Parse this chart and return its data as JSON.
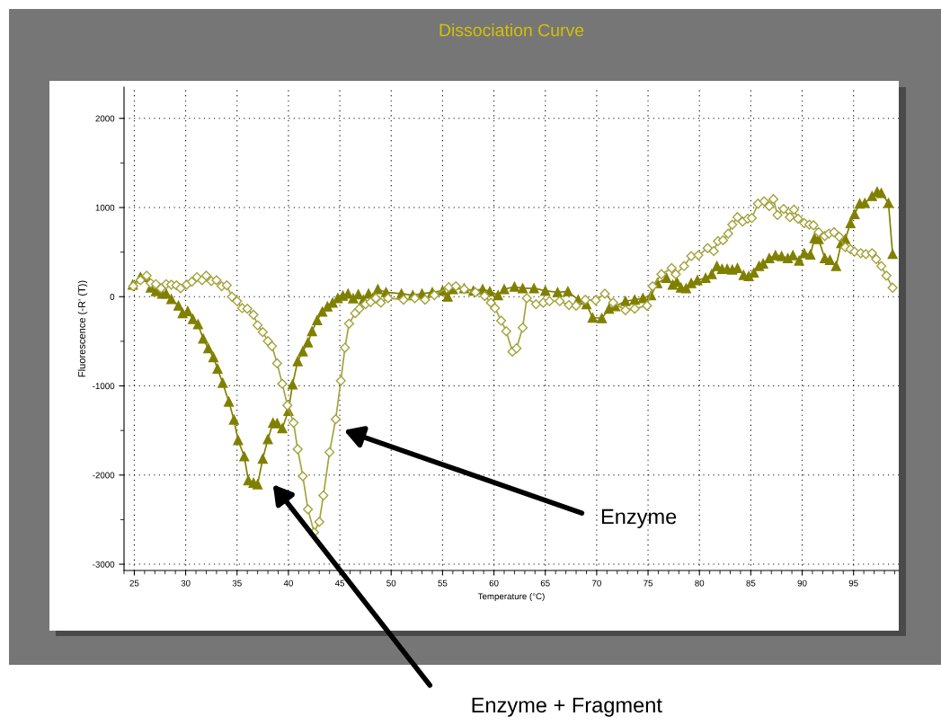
{
  "chart_data": {
    "type": "line",
    "title": "Dissociation Curve",
    "xlabel": "Temperature (°C)",
    "ylabel": "Fluorescence (-R' (T))",
    "xlim": [
      24,
      99.4
    ],
    "ylim": [
      -3070,
      2350
    ],
    "xticks": [
      {
        "value": 24,
        "label": null
      },
      25,
      {
        "value": 26,
        "label": null
      },
      {
        "value": 27,
        "label": null
      },
      {
        "value": 28,
        "label": null
      },
      {
        "value": 29,
        "label": null
      },
      30,
      {
        "value": 31,
        "label": null
      },
      {
        "value": 32,
        "label": null
      },
      {
        "value": 33,
        "label": null
      },
      {
        "value": 34,
        "label": null
      },
      35,
      {
        "value": 36,
        "label": null
      },
      {
        "value": 37,
        "label": null
      },
      {
        "value": 38,
        "label": null
      },
      {
        "value": 39,
        "label": null
      },
      40,
      {
        "value": 41,
        "label": null
      },
      {
        "value": 42,
        "label": null
      },
      {
        "value": 43,
        "label": null
      },
      {
        "value": 44,
        "label": null
      },
      45,
      {
        "value": 46,
        "label": null
      },
      {
        "value": 47,
        "label": null
      },
      {
        "value": 48,
        "label": null
      },
      {
        "value": 49,
        "label": null
      },
      50,
      {
        "value": 51,
        "label": null
      },
      {
        "value": 52,
        "label": null
      },
      {
        "value": 53,
        "label": null
      },
      {
        "value": 54,
        "label": null
      },
      55,
      {
        "value": 56,
        "label": null
      },
      {
        "value": 57,
        "label": null
      },
      {
        "value": 58,
        "label": null
      },
      {
        "value": 59,
        "label": null
      },
      60,
      {
        "value": 61,
        "label": null
      },
      {
        "value": 62,
        "label": null
      },
      {
        "value": 63,
        "label": null
      },
      {
        "value": 64,
        "label": null
      },
      65,
      {
        "value": 66,
        "label": null
      },
      {
        "value": 67,
        "label": null
      },
      {
        "value": 68,
        "label": null
      },
      {
        "value": 69,
        "label": null
      },
      70,
      {
        "value": 71,
        "label": null
      },
      {
        "value": 72,
        "label": null
      },
      {
        "value": 73,
        "label": null
      },
      {
        "value": 74,
        "label": null
      },
      75,
      {
        "value": 76,
        "label": null
      },
      {
        "value": 77,
        "label": null
      },
      {
        "value": 78,
        "label": null
      },
      {
        "value": 79,
        "label": null
      },
      80,
      {
        "value": 81,
        "label": null
      },
      {
        "value": 82,
        "label": null
      },
      {
        "value": 83,
        "label": null
      },
      {
        "value": 84,
        "label": null
      },
      85,
      {
        "value": 86,
        "label": null
      },
      {
        "value": 87,
        "label": null
      },
      {
        "value": 88,
        "label": null
      },
      {
        "value": 89,
        "label": null
      },
      90,
      {
        "value": 91,
        "label": null
      },
      {
        "value": 92,
        "label": null
      },
      {
        "value": 93,
        "label": null
      },
      {
        "value": 94,
        "label": null
      },
      95,
      {
        "value": 96,
        "label": null
      },
      {
        "value": 97,
        "label": null
      },
      {
        "value": 98,
        "label": null
      },
      {
        "value": 99,
        "label": null
      }
    ],
    "yticks": [
      -3000,
      {
        "value": -2500,
        "label": null
      },
      -2000,
      {
        "value": -1500,
        "label": null
      },
      -1000,
      {
        "value": -500,
        "label": null
      },
      0,
      {
        "value": 500,
        "label": null
      },
      1000,
      {
        "value": 1500,
        "label": null
      },
      2000
    ],
    "grid": true,
    "line_style": "solid",
    "series": [
      {
        "color": "#808000",
        "marker": "triangle",
        "x": [
          24.85,
          25.6,
          26.2,
          26.6,
          27.1,
          27.7,
          28.1,
          28.6,
          29.3,
          29.7,
          30.2,
          30.7,
          31.2,
          31.7,
          32.2,
          32.7,
          33.1,
          33.6,
          34.2,
          34.7,
          35.1,
          35.7,
          36.1,
          36.6,
          37.0,
          37.5,
          38.0,
          38.5,
          38.9,
          39.4,
          40.0,
          40.4,
          40.9,
          41.4,
          41.9,
          42.3,
          42.8,
          43.3,
          43.8,
          44.3,
          44.8,
          45.3,
          45.8,
          46.3,
          46.8,
          47.3,
          47.8,
          48.2,
          48.7,
          49.5,
          51.0,
          52.1,
          53.0,
          54.0,
          55.0,
          55.5,
          56.0,
          57.1,
          58.0,
          58.9,
          59.6,
          60.4,
          61.0,
          62.0,
          62.8,
          63.9,
          65.0,
          66.2,
          67.2,
          68.2,
          69.0,
          69.6,
          70.5,
          71.2,
          71.8,
          72.8,
          73.7,
          74.5,
          75.3,
          75.9,
          76.8,
          77.4,
          77.8,
          78.2,
          78.7,
          79.2,
          79.8,
          80.6,
          81.2,
          81.7,
          82.2,
          82.7,
          83.2,
          83.7,
          84.3,
          84.8,
          85.3,
          85.8,
          86.2,
          86.8,
          87.4,
          88.0,
          88.6,
          89.1,
          89.7,
          90.2,
          90.8,
          91.2,
          91.6,
          92.2,
          92.7,
          93.3,
          93.8,
          94.2,
          94.7,
          95.1,
          95.6,
          96.1,
          96.8,
          97.3,
          97.7,
          98.4,
          98.8
        ],
        "values": [
          134,
          219,
          219,
          101,
          61,
          34,
          34,
          -27,
          -101,
          -185,
          -162,
          -252,
          -310,
          -471,
          -579,
          -680,
          -808,
          -966,
          -1178,
          -1380,
          -1609,
          -1791,
          -2060,
          -2087,
          -2104,
          -1818,
          -1599,
          -1414,
          -1420,
          -1475,
          -1280,
          -983,
          -724,
          -613,
          -512,
          -387,
          -263,
          -168,
          -111,
          -67,
          -17,
          10,
          34,
          -20,
          27,
          -34,
          34,
          -17,
          84,
          50,
          34,
          17,
          34,
          50,
          67,
          0,
          84,
          94,
          67,
          84,
          60,
          17,
          84,
          111,
          94,
          94,
          67,
          50,
          60,
          -34,
          -84,
          -236,
          -242,
          -135,
          -108,
          -50,
          -34,
          -17,
          17,
          151,
          209,
          135,
          168,
          101,
          94,
          151,
          185,
          209,
          252,
          343,
          310,
          310,
          303,
          320,
          242,
          229,
          269,
          343,
          370,
          431,
          465,
          455,
          431,
          465,
          404,
          488,
          471,
          656,
          646,
          431,
          411,
          343,
          599,
          646,
          825,
          926,
          1043,
          1050,
          1128,
          1178,
          1162,
          1050,
          478
        ]
      },
      {
        "color": "#a3a23c",
        "marker": "diamond",
        "x": [
          24.9,
          25.6,
          26.2,
          26.6,
          27.1,
          27.6,
          28.1,
          28.6,
          29.1,
          29.5,
          30.1,
          30.6,
          31.1,
          31.6,
          32.0,
          32.5,
          33.0,
          33.5,
          34.0,
          34.5,
          35.0,
          35.5,
          36.0,
          36.6,
          37.0,
          37.5,
          38.0,
          38.4,
          38.9,
          39.4,
          39.9,
          40.5,
          40.9,
          41.4,
          41.9,
          42.5,
          43.0,
          43.4,
          44.0,
          44.6,
          45.1,
          45.5,
          45.9,
          46.5,
          46.9,
          47.5,
          48.0,
          48.5,
          49.0,
          49.7,
          51.2,
          52.3,
          53.3,
          54.2,
          55.6,
          56.3,
          57.1,
          58.2,
          59.1,
          59.7,
          60.1,
          60.7,
          61.2,
          61.8,
          62.2,
          62.8,
          63.2,
          64.1,
          64.8,
          65.4,
          66.4,
          67.3,
          68.0,
          68.9,
          69.9,
          70.8,
          71.6,
          72.8,
          73.7,
          74.9,
          75.45,
          76.3,
          77.3,
          77.7,
          78.5,
          79.2,
          79.9,
          80.8,
          81.4,
          81.8,
          82.3,
          82.8,
          83.2,
          83.7,
          84.2,
          84.7,
          85.1,
          85.7,
          86.3,
          86.8,
          87.2,
          87.6,
          88.2,
          88.8,
          89.2,
          89.6,
          90.2,
          90.7,
          91.1,
          91.6,
          92.2,
          92.6,
          93.1,
          93.6,
          94.2,
          94.7,
          95.1,
          95.7,
          96.2,
          96.8,
          97.2,
          97.7,
          98.2,
          98.8
        ],
        "values": [
          118,
          185,
          236,
          151,
          141,
          94,
          141,
          135,
          128,
          94,
          135,
          168,
          219,
          185,
          236,
          175,
          185,
          118,
          128,
          0,
          -50,
          -128,
          -135,
          -202,
          -320,
          -397,
          -498,
          -555,
          -747,
          -976,
          -1219,
          -1414,
          -1710,
          -2013,
          -2384,
          -2643,
          -2525,
          -2229,
          -1744,
          -1374,
          -943,
          -572,
          -303,
          -185,
          -135,
          -84,
          -61,
          -17,
          -67,
          -17,
          -34,
          -17,
          -34,
          17,
          107,
          118,
          84,
          50,
          7,
          -67,
          -128,
          -269,
          -387,
          -616,
          -579,
          -347,
          -17,
          -84,
          -67,
          -50,
          -50,
          -94,
          -101,
          -34,
          -40,
          34,
          -67,
          -151,
          -135,
          -101,
          118,
          252,
          320,
          252,
          343,
          455,
          465,
          545,
          512,
          623,
          633,
          707,
          808,
          892,
          842,
          875,
          882,
          1043,
          1070,
          1016,
          1094,
          916,
          983,
          892,
          976,
          875,
          825,
          808,
          801,
          723,
          680,
          707,
          723,
          673,
          555,
          532,
          505,
          488,
          478,
          488,
          421,
          343,
          236,
          101
        ]
      }
    ],
    "annotations": [
      "Enzyme",
      "Enzyme + Fragment"
    ]
  }
}
